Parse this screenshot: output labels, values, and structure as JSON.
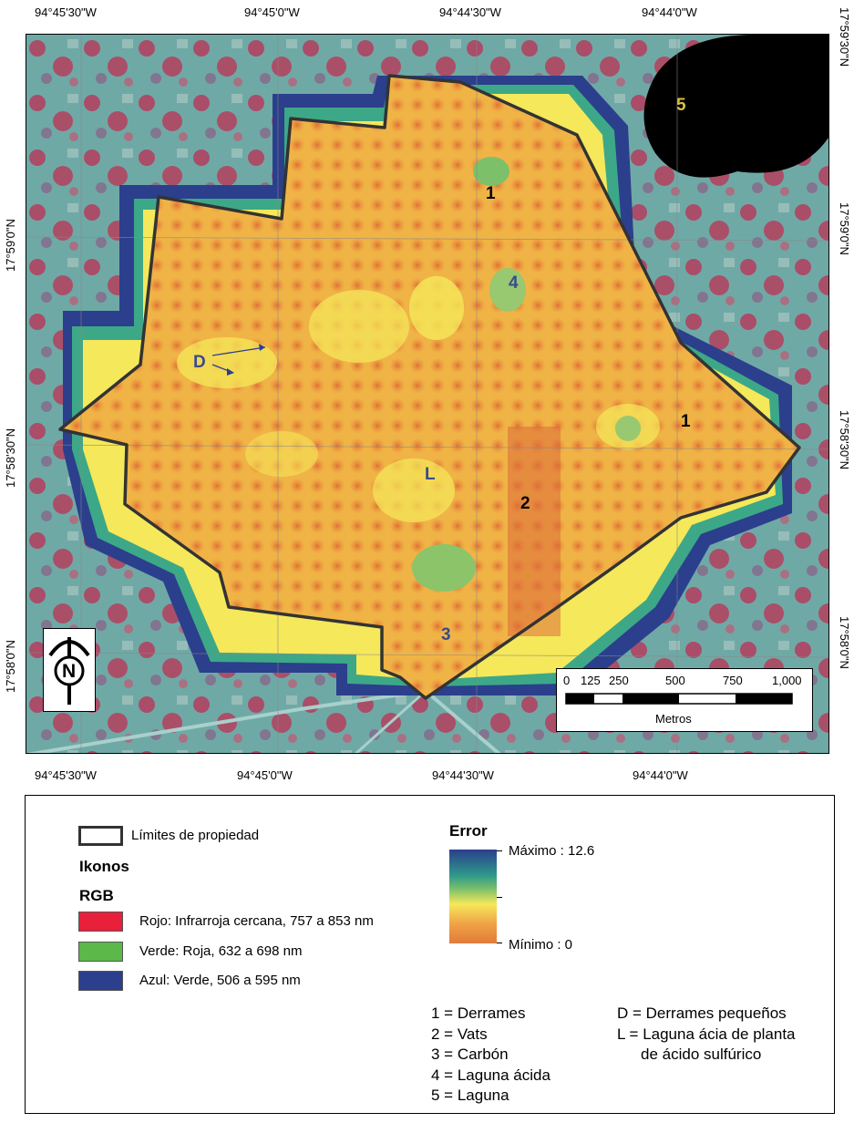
{
  "map": {
    "top_lon_labels": [
      "94°45'30\"W",
      "94°45'0\"W",
      "94°44'30\"W",
      "94°44'0\"W"
    ],
    "bottom_lon_labels": [
      "94°45'30\"W",
      "94°45'0\"W",
      "94°44'30\"W",
      "94°44'0\"W"
    ],
    "left_lat_labels": [
      "17°59'0\"N",
      "17°58'30\"N",
      "17°58'0\"N"
    ],
    "right_lat_labels": [
      "17°59'30\"N",
      "17°59'0\"N",
      "17°58'30\"N",
      "17°58'0\"N"
    ],
    "site_labels": {
      "derrames_a": "1",
      "derrames_b": "1",
      "vats": "2",
      "carbon": "3",
      "laguna_acida": "4",
      "laguna": "5",
      "derrames_pequenos": "D",
      "laguna_acia": "L"
    },
    "north_arrow": "N",
    "scale_bar": {
      "ticks": [
        "0",
        "125",
        "250",
        "500",
        "750",
        "1,000"
      ],
      "unit": "Metros"
    },
    "colors": {
      "error_max": "#2b3f8c",
      "error_mid": "#f5e85a",
      "error_min": "#e07b3a",
      "boundary": "#333333",
      "imagery_red": "#c8284a",
      "imagery_teal": "#5aa8a0"
    }
  },
  "legend": {
    "boundary_label": "Límites de propiedad",
    "imagery_title": "Ikonos",
    "rgb_title": "RGB",
    "bands": [
      {
        "label": "Rojo: Infrarroja cercana, 757 a 853 nm",
        "color": "#e8203c"
      },
      {
        "label": "Verde: Roja, 632 a 698 nm",
        "color": "#5cb848"
      },
      {
        "label": "Azul: Verde, 506 a 595 nm",
        "color": "#2b3f8c"
      }
    ],
    "error_title": "Error",
    "error_max": "Máximo : 12.6",
    "error_min": "Mínimo : 0",
    "key_left": [
      "1 = Derrames",
      "2 = Vats",
      "3 = Carbón",
      "4 = Laguna ácida",
      "5 = Laguna"
    ],
    "key_right": [
      "D = Derrames pequeños",
      "L = Laguna ácia de planta",
      "de ácido sulfúrico"
    ]
  }
}
